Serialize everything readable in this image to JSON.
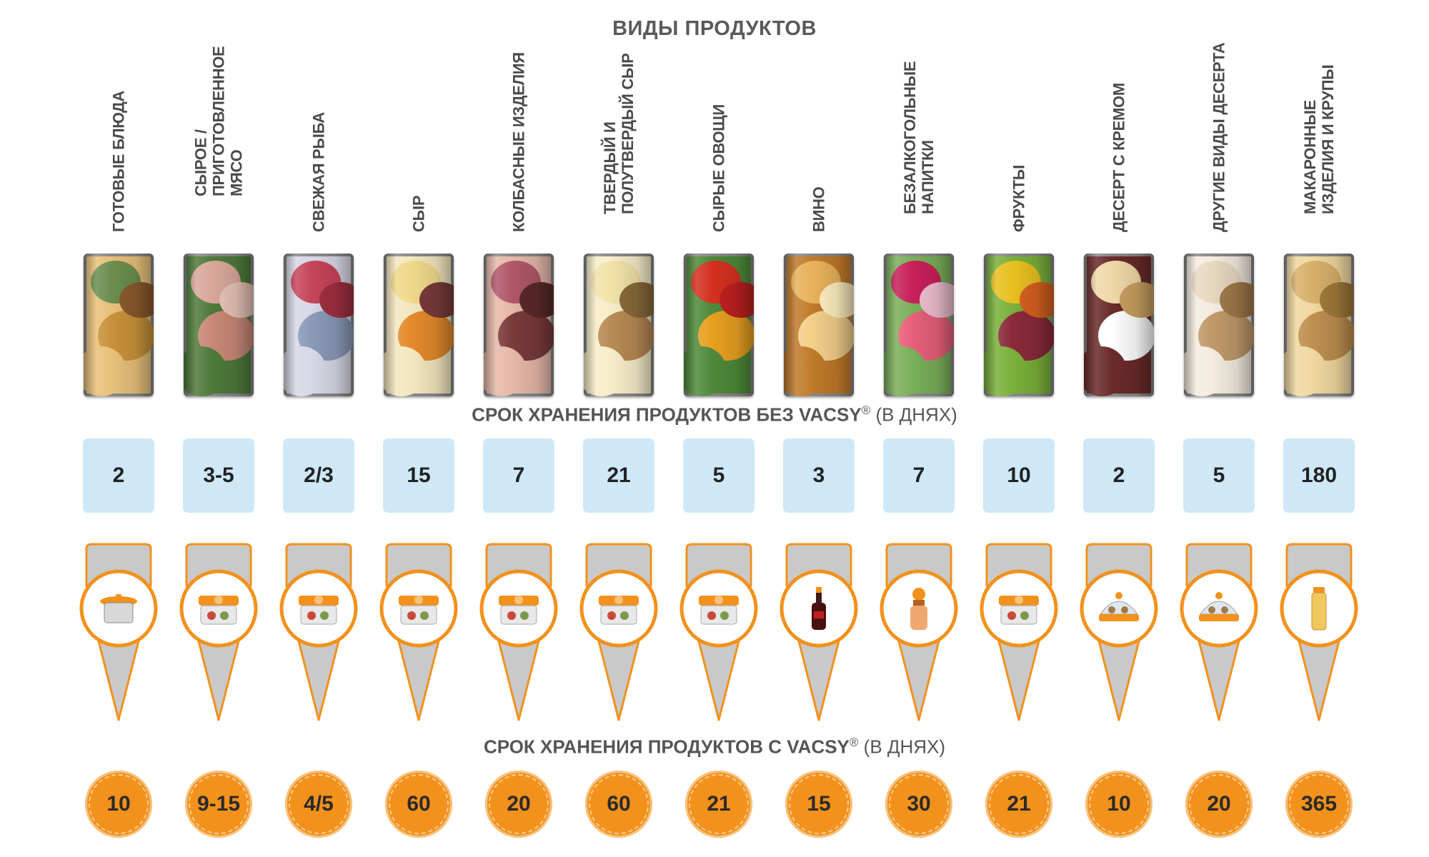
{
  "title": "ВИДЫ ПРОДУКТОВ",
  "without_vacsy": {
    "prefix": "СРОК ХРАНЕНИЯ ПРОДУКТОВ БЕЗ VACSY",
    "mark": "®",
    "suffix": " (В ДНЯХ)"
  },
  "with_vacsy": {
    "prefix": "СРОК ХРАНЕНИЯ ПРОДУКТОВ С VACSY",
    "mark": "®",
    "suffix": " (В ДНЯХ)"
  },
  "colors": {
    "box": "#cfe8f7",
    "orange": "#f2911c",
    "pin_grey": "#c9c9c9"
  },
  "products": [
    {
      "name": "ГОТОВЫЕ БЛЮДА",
      "without": "2",
      "with": "10",
      "container": "pot-icon",
      "photo": [
        "#6b8e4e",
        "#c9923a",
        "#e8c07a",
        "#8a5a2c"
      ]
    },
    {
      "name": "СЫРОЕ / ПРИГОТОВЛЕННОЕ МЯСО",
      "without": "3-5",
      "with": "9-15",
      "container": "rect-container-icon",
      "photo": [
        "#d9a79a",
        "#c98878",
        "#4e7a3a",
        "#e8c4b8"
      ]
    },
    {
      "name": "СВЕЖАЯ РЫБА",
      "without": "2/3",
      "with": "4/5",
      "container": "square-container-icon",
      "photo": [
        "#c6455a",
        "#8a9ab8",
        "#d8d8e6",
        "#a03040"
      ]
    },
    {
      "name": "СЫР",
      "without": "15",
      "with": "60",
      "container": "clear-container-icon",
      "photo": [
        "#f0d98a",
        "#e38a2b",
        "#f4e7c0",
        "#7a3a3a"
      ]
    },
    {
      "name": "КОЛБАСНЫЕ ИЗДЕЛИЯ",
      "without": "7",
      "with": "20",
      "container": "round-container-icon",
      "photo": [
        "#b0566a",
        "#7a3a3a",
        "#e6b8a8",
        "#5a2a2a"
      ]
    },
    {
      "name": "ТВЕРДЫЙ И ПОЛУТВЕРДЫЙ СЫР",
      "without": "21",
      "with": "60",
      "container": "white-container-icon",
      "photo": [
        "#f2e2a8",
        "#b88a55",
        "#f7edc9",
        "#8a6a3a"
      ]
    },
    {
      "name": "СЫРЫЕ ОВОЩИ",
      "without": "5",
      "with": "21",
      "container": "veg-container-icon",
      "photo": [
        "#d43020",
        "#e8a020",
        "#4e8a3a",
        "#c02020"
      ]
    },
    {
      "name": "ВИНО",
      "without": "3",
      "with": "15",
      "container": "wine-bottle-icon",
      "photo": [
        "#e8b25a",
        "#f4d08a",
        "#c07a2a",
        "#fff0c0"
      ]
    },
    {
      "name": "БЕЗАЛКОГОЛЬНЫЕ НАПИТКИ",
      "without": "7",
      "with": "30",
      "container": "bottle-stopper-icon",
      "photo": [
        "#c8205a",
        "#e8607a",
        "#7ab05a",
        "#f0c0d0"
      ]
    },
    {
      "name": "ФРУКТЫ",
      "without": "10",
      "with": "21",
      "container": "fruit-container-icon",
      "photo": [
        "#e8c020",
        "#8a2a3a",
        "#7ab03a",
        "#d86020"
      ]
    },
    {
      "name": "ДЕСЕРТ С КРЕМОМ",
      "without": "2",
      "with": "10",
      "container": "dessert-container-icon",
      "photo": [
        "#f0d8a8",
        "#ffffff",
        "#6a2a2a",
        "#c8a060"
      ]
    },
    {
      "name": "ДРУГИЕ ВИДЫ ДЕСЕРТА",
      "without": "5",
      "with": "20",
      "container": "dome-container-icon",
      "photo": [
        "#e8d8c0",
        "#c09a6a",
        "#f4ece0",
        "#a07a4a"
      ]
    },
    {
      "name": "МАКАРОННЫЕ ИЗДЕЛИЯ И КРУПЫ",
      "without": "180",
      "with": "365",
      "container": "canister-icon",
      "photo": [
        "#d8b06a",
        "#c09050",
        "#f0d8a0",
        "#a07a3a"
      ]
    }
  ]
}
